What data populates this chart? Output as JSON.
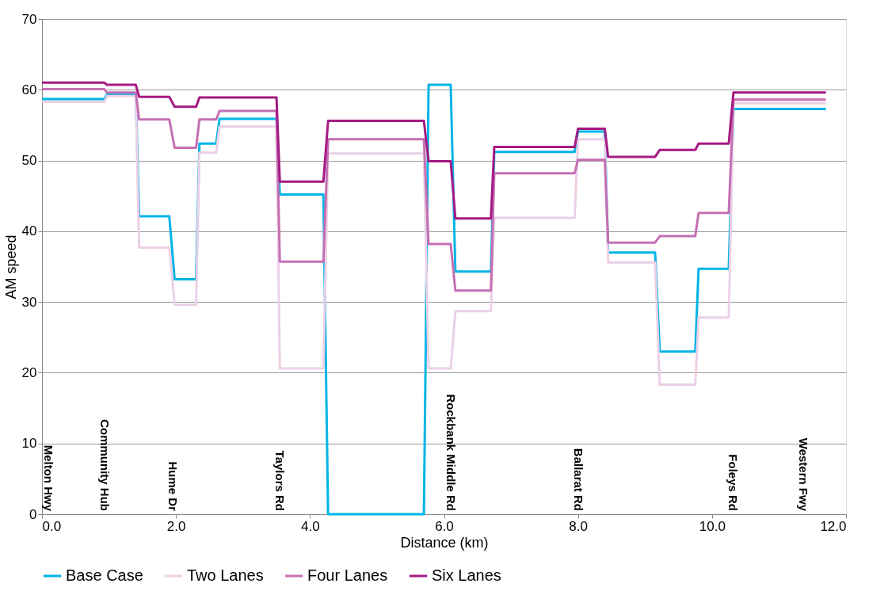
{
  "chart_data": {
    "type": "line",
    "xlabel": "Distance (km)",
    "ylabel": "AM speed",
    "x": [
      0,
      0.93,
      0.97,
      1.4,
      1.45,
      1.9,
      1.98,
      2.3,
      2.35,
      2.6,
      2.65,
      3.5,
      3.55,
      4.2,
      4.27,
      5.7,
      5.77,
      6.1,
      6.17,
      6.7,
      6.75,
      7.95,
      8.0,
      8.4,
      8.45,
      9.15,
      9.22,
      9.75,
      9.8,
      10.25,
      10.32,
      11.7
    ],
    "series": [
      {
        "name": "Base Case",
        "color": "#00b4e6",
        "values": [
          58.7,
          58.7,
          59.3,
          59.3,
          42.1,
          42.1,
          33.2,
          33.2,
          52.4,
          52.4,
          55.9,
          55.9,
          45.2,
          45.2,
          0,
          0,
          60.7,
          60.7,
          34.3,
          34.3,
          51.2,
          51.2,
          54.1,
          54.1,
          37.0,
          37.0,
          23.0,
          23.0,
          34.7,
          34.7,
          57.3,
          57.3
        ]
      },
      {
        "name": "Two Lanes",
        "color": "#ecd0e6",
        "values": [
          58.3,
          58.3,
          59.1,
          59.1,
          37.7,
          37.7,
          29.6,
          29.6,
          51.1,
          51.1,
          54.8,
          54.8,
          20.6,
          20.6,
          51.0,
          51.0,
          20.6,
          20.6,
          28.7,
          28.7,
          41.9,
          41.9,
          53.0,
          53.0,
          35.6,
          35.6,
          18.3,
          18.3,
          27.8,
          27.8,
          58.1,
          58.1
        ]
      },
      {
        "name": "Four Lanes",
        "color": "#c56fb3",
        "values": [
          60.1,
          60.1,
          59.6,
          59.6,
          55.8,
          55.8,
          51.8,
          51.8,
          55.8,
          55.8,
          57.0,
          57.0,
          35.7,
          35.7,
          53.0,
          53.0,
          38.2,
          38.2,
          31.6,
          31.6,
          48.2,
          48.2,
          50.1,
          50.1,
          38.4,
          38.4,
          39.3,
          39.3,
          42.6,
          42.6,
          58.6,
          58.6
        ]
      },
      {
        "name": "Six Lanes",
        "color": "#a51a83",
        "values": [
          61.0,
          61.0,
          60.7,
          60.7,
          59.0,
          59.0,
          57.6,
          57.6,
          58.9,
          58.9,
          58.9,
          58.9,
          47.0,
          47.0,
          55.6,
          55.6,
          49.9,
          49.9,
          41.8,
          41.8,
          51.9,
          51.9,
          54.5,
          54.5,
          50.5,
          50.5,
          51.5,
          51.5,
          52.4,
          52.4,
          59.6,
          59.6
        ]
      }
    ],
    "xlim": [
      0,
      12
    ],
    "xticks": [
      {
        "value": 0,
        "label": "0.0"
      },
      {
        "value": 2,
        "label": "2.0"
      },
      {
        "value": 4,
        "label": "4.0"
      },
      {
        "value": 6,
        "label": "6.0"
      },
      {
        "value": 8,
        "label": "8.0"
      },
      {
        "value": 10,
        "label": "10.0"
      },
      {
        "value": 12,
        "label": "12.0"
      }
    ],
    "ylim": [
      0,
      70
    ],
    "yticks": [
      0,
      10,
      20,
      30,
      40,
      50,
      60,
      70
    ],
    "grid": "y",
    "legend": "bottom",
    "marker": "none",
    "line_style": "solid",
    "annotations": [
      "Melton Hwy",
      "Community Hub",
      "Hume Dr",
      "Taylors Rd",
      "Rockbank Middle Rd",
      "Ballarat Rd",
      "Foleys Rd",
      "Western Fwy"
    ]
  }
}
